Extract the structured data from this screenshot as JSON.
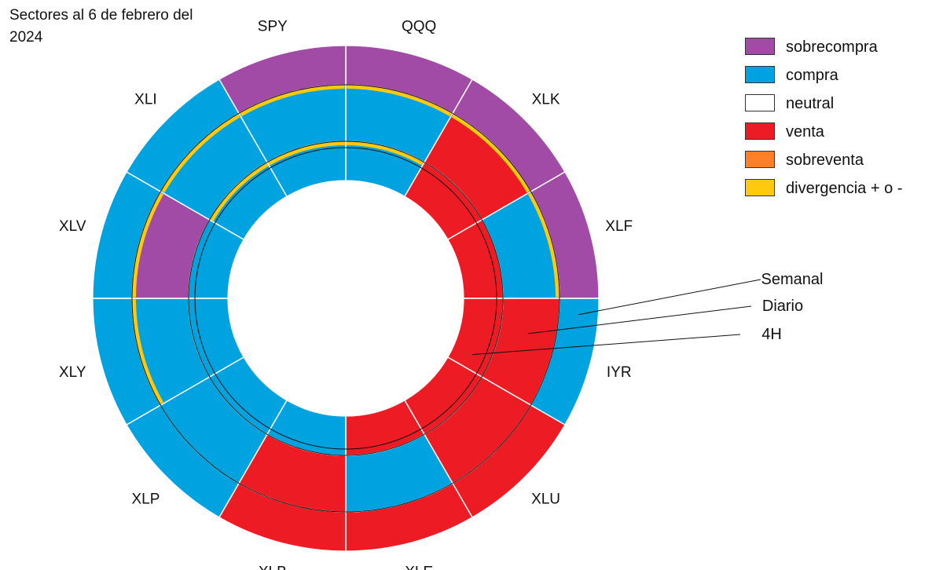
{
  "title": "Sectores al 6 de febrero del 2024",
  "legend": [
    {
      "key": "sobrecompra",
      "label": "sobrecompra",
      "color": "#A24BA6"
    },
    {
      "key": "compra",
      "label": "compra",
      "color": "#00A3E0"
    },
    {
      "key": "neutral",
      "label": "neutral",
      "color": "#FFFFFF"
    },
    {
      "key": "venta",
      "label": "venta",
      "color": "#ED1C24"
    },
    {
      "key": "sobreventa",
      "label": "sobreventa",
      "color": "#FF7F27"
    },
    {
      "key": "divergencia",
      "label": "divergencia + o -",
      "color": "#FFC90E"
    }
  ],
  "chart_data": {
    "type": "sunburst",
    "title": "Sectores al 6 de febrero del 2024",
    "rings": [
      "Semanal",
      "Diario",
      "4H"
    ],
    "ring_order": "outer to inner",
    "sectors": [
      {
        "name": "QQQ",
        "Semanal": "sobrecompra",
        "Diario": "compra",
        "4H": "compra",
        "divergence": [
          "Diario",
          "4H"
        ]
      },
      {
        "name": "XLK",
        "Semanal": "sobrecompra",
        "Diario": "venta",
        "4H": "venta",
        "divergence": [
          "Diario"
        ]
      },
      {
        "name": "XLF",
        "Semanal": "sobrecompra",
        "Diario": "compra",
        "4H": "venta",
        "divergence": [
          "Diario"
        ]
      },
      {
        "name": "IYR",
        "Semanal": "compra",
        "Diario": "venta",
        "4H": "venta",
        "divergence": []
      },
      {
        "name": "XLU",
        "Semanal": "venta",
        "Diario": "venta",
        "4H": "venta",
        "divergence": []
      },
      {
        "name": "XLE",
        "Semanal": "venta",
        "Diario": "compra",
        "4H": "venta",
        "divergence": []
      },
      {
        "name": "XLB",
        "Semanal": "venta",
        "Diario": "venta",
        "4H": "compra",
        "divergence": []
      },
      {
        "name": "XLP",
        "Semanal": "compra",
        "Diario": "compra",
        "4H": "compra",
        "divergence": []
      },
      {
        "name": "XLY",
        "Semanal": "compra",
        "Diario": "compra",
        "4H": "compra",
        "divergence": [
          "Diario"
        ]
      },
      {
        "name": "XLV",
        "Semanal": "compra",
        "Diario": "sobrecompra",
        "4H": "compra",
        "divergence": [
          "Diario"
        ]
      },
      {
        "name": "XLI",
        "Semanal": "compra",
        "Diario": "compra",
        "4H": "compra",
        "divergence": [
          "Diario",
          "4H"
        ]
      },
      {
        "name": "SPY",
        "Semanal": "sobrecompra",
        "Diario": "compra",
        "4H": "compra",
        "divergence": [
          "Diario",
          "4H"
        ]
      }
    ]
  }
}
